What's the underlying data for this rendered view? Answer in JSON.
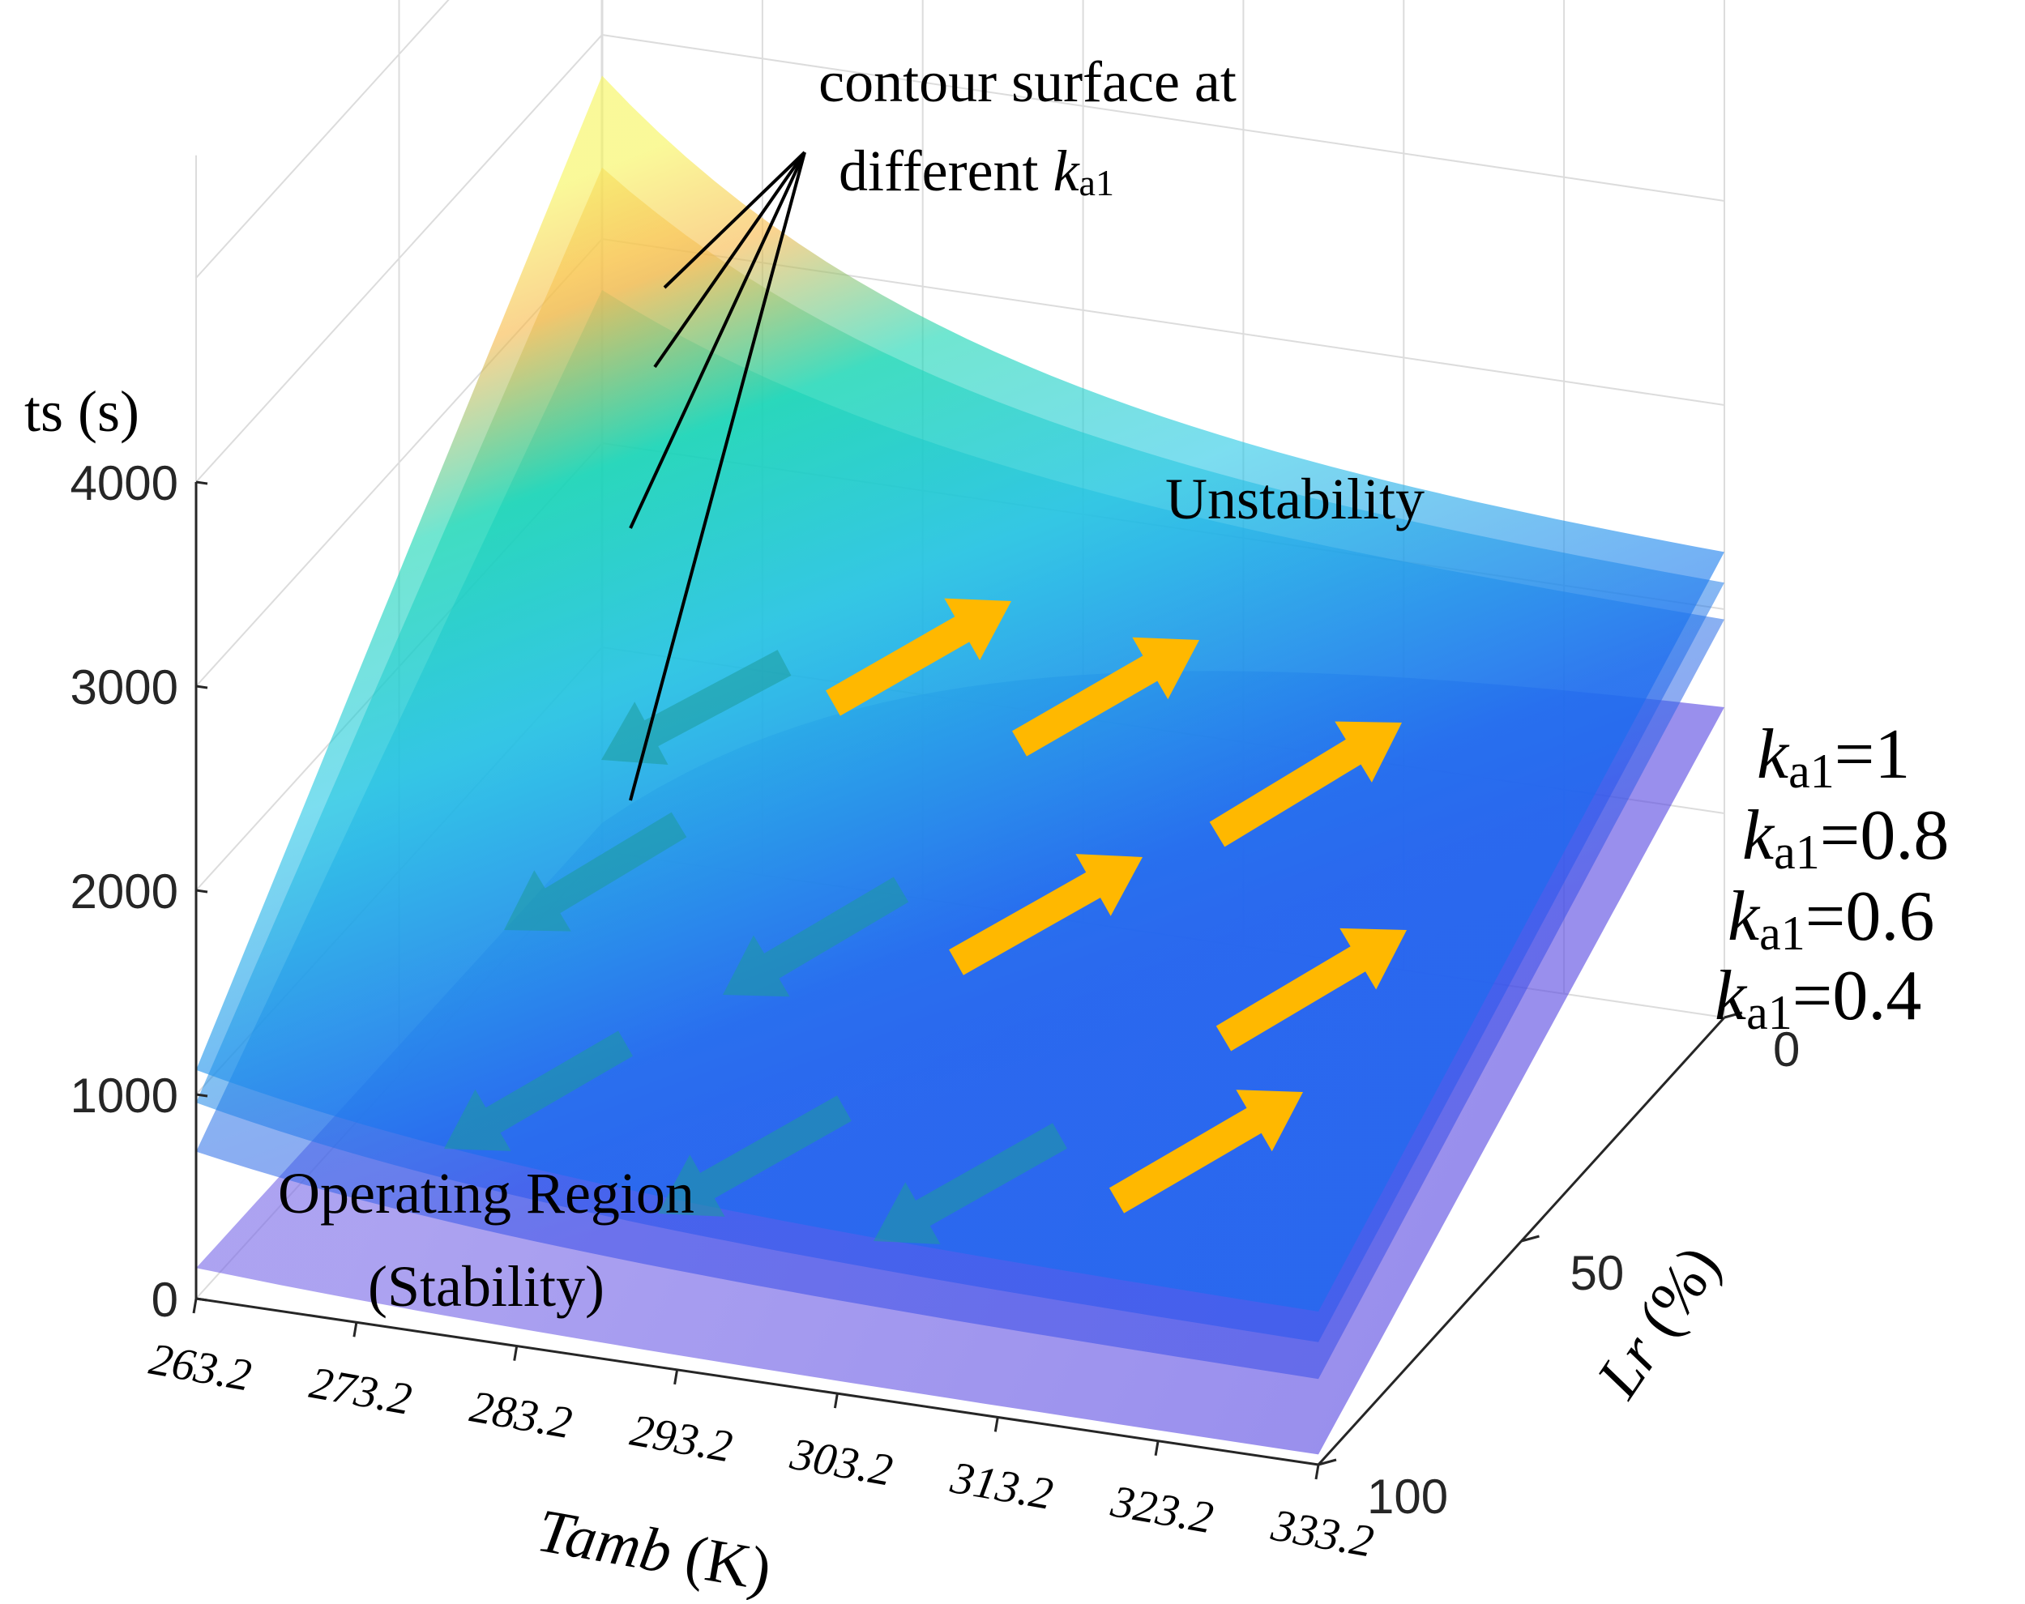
{
  "chart_data": {
    "type": "surface",
    "title": "",
    "axes": {
      "z": {
        "label": "ts (s)",
        "ticks": [
          "0",
          "1000",
          "2000",
          "3000",
          "4000"
        ],
        "range": [
          0,
          4000
        ]
      },
      "x": {
        "label_italic": "Tamb",
        "label_rest": " (K)",
        "ticks": [
          "263.2",
          "273.2",
          "283.2",
          "293.2",
          "303.2",
          "313.2",
          "323.2",
          "333.2"
        ],
        "range": [
          263.2,
          333.2
        ]
      },
      "y": {
        "label_italic": "Lr",
        "label_rest": " (%)",
        "ticks": [
          "0",
          "50",
          "100"
        ],
        "range": [
          0,
          100
        ]
      }
    },
    "series": [
      {
        "name": "ka1=1",
        "k_symbol": "k",
        "sub": "a1",
        "value_text": "=1",
        "ts_at_263_Lr0": 3800,
        "ts_at_333_Lr0": 2280,
        "ts_at_263_Lr100": 1120,
        "ts_at_333_Lr100": 750
      },
      {
        "name": "ka1=0.8",
        "k_symbol": "k",
        "sub": "a1",
        "value_text": "=0.8",
        "ts_at_263_Lr0": 3350,
        "ts_at_333_Lr0": 2130,
        "ts_at_263_Lr100": 960,
        "ts_at_333_Lr100": 600
      },
      {
        "name": "ka1=0.6",
        "k_symbol": "k",
        "sub": "a1",
        "value_text": "=0.6",
        "ts_at_263_Lr0": 2750,
        "ts_at_333_Lr0": 1950,
        "ts_at_263_Lr100": 720,
        "ts_at_333_Lr100": 420
      },
      {
        "name": "ka1=0.4",
        "k_symbol": "k",
        "sub": "a1",
        "value_text": "=0.4",
        "ts_at_263_Lr0": 140,
        "ts_at_333_Lr0": 1520,
        "ts_at_263_Lr100": 150,
        "ts_at_333_Lr100": 50
      }
    ],
    "annotations": {
      "contour_line1": "contour surface at",
      "contour_line2_prefix": "different ",
      "contour_k": "k",
      "contour_sub": "a1",
      "unstable_label": "Unstability",
      "operating_line1": "Operating Region",
      "operating_line2": "(Stability)"
    },
    "colors": {
      "arrow_unstable": "#ffb800",
      "arrow_stable": "#1e9a9a",
      "surface_peak": "#f6f55a",
      "surface_mid": "#18d6b4",
      "surface_cyan": "#2bc9e6",
      "surface_blue": "#1a6cf0",
      "surface_purple": "#6a5ae6",
      "grid": "#dcdcdc"
    }
  }
}
